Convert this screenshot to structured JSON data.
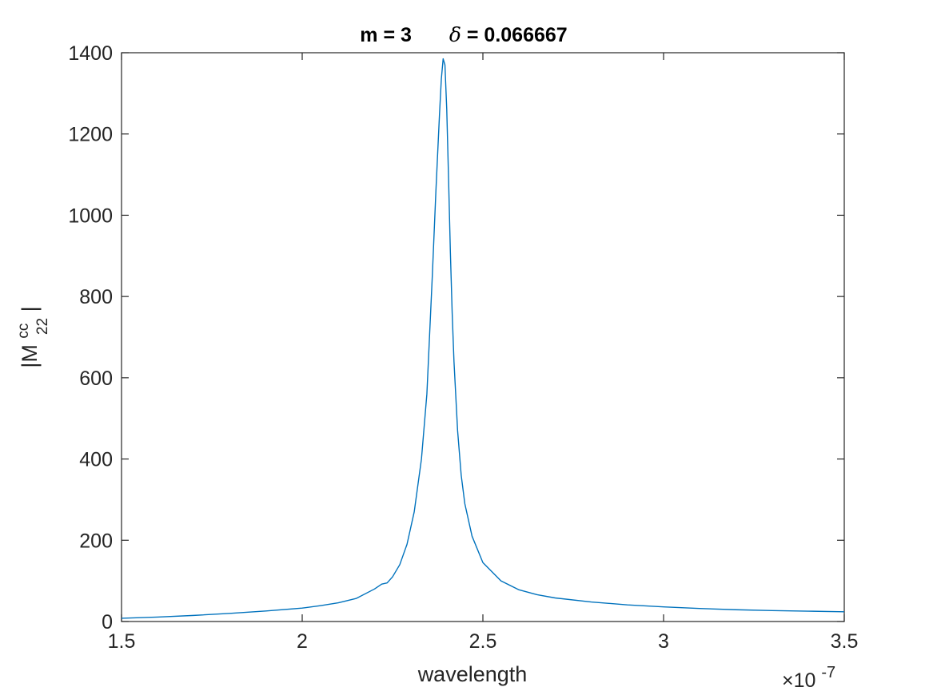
{
  "chart_data": {
    "type": "line",
    "title": {
      "prefix": "m = 3",
      "symbol": "δ",
      "suffix": " = 0.066667"
    },
    "xlabel": "wavelength",
    "ylabel": {
      "base": "|M",
      "sup": "cc",
      "sub": "22",
      "close": "|"
    },
    "x_exponent": {
      "times": "×10",
      "power": "-7"
    },
    "xlim": [
      1.5,
      3.5
    ],
    "ylim": [
      0,
      1400
    ],
    "x_ticks": [
      1.5,
      2,
      2.5,
      3,
      3.5
    ],
    "x_tick_labels": [
      "1.5",
      "2",
      "2.5",
      "3",
      "3.5"
    ],
    "y_ticks": [
      0,
      200,
      400,
      600,
      800,
      1000,
      1200,
      1400
    ],
    "y_tick_labels": [
      "0",
      "200",
      "400",
      "600",
      "800",
      "1000",
      "1200",
      "1400"
    ],
    "grid": false,
    "series": [
      {
        "color": "#0072BD",
        "x": [
          1.5,
          1.6,
          1.7,
          1.8,
          1.9,
          2.0,
          2.05,
          2.1,
          2.15,
          2.2,
          2.22,
          2.235,
          2.25,
          2.27,
          2.29,
          2.31,
          2.33,
          2.345,
          2.36,
          2.37,
          2.38,
          2.385,
          2.39,
          2.395,
          2.4,
          2.405,
          2.41,
          2.415,
          2.42,
          2.43,
          2.44,
          2.45,
          2.47,
          2.5,
          2.55,
          2.6,
          2.65,
          2.7,
          2.8,
          2.9,
          3.0,
          3.1,
          3.2,
          3.3,
          3.4,
          3.5
        ],
        "y": [
          8,
          11,
          15,
          20,
          26,
          33,
          39,
          46,
          57,
          80,
          92,
          95,
          110,
          140,
          190,
          270,
          400,
          560,
          850,
          1060,
          1250,
          1335,
          1385,
          1370,
          1260,
          1090,
          910,
          760,
          640,
          470,
          360,
          290,
          210,
          145,
          100,
          78,
          66,
          58,
          48,
          41,
          36,
          32,
          29,
          27,
          25.5,
          24
        ]
      }
    ]
  }
}
